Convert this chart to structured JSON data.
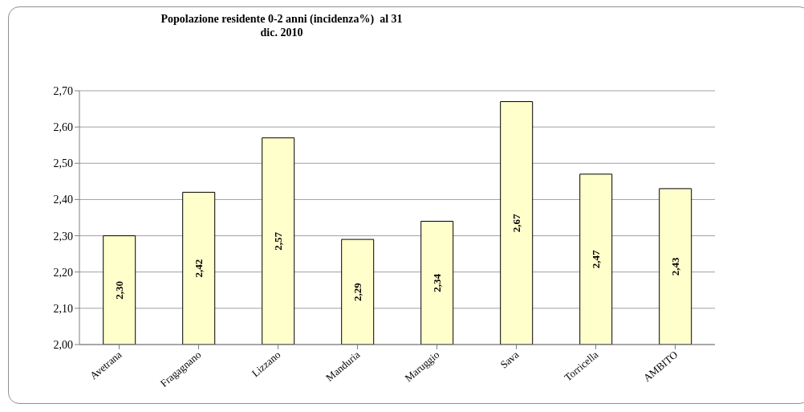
{
  "chart_data": {
    "type": "bar",
    "title": "Popolazione residente 0-2 anni (incidenza%)  al 31\ndic. 2010",
    "categories": [
      "Avetrana",
      "Fragagnano",
      "Lizzano",
      "Manduria",
      "Maruggio",
      "Sava",
      "Torricella",
      "AMBITO"
    ],
    "values": [
      2.3,
      2.42,
      2.57,
      2.29,
      2.34,
      2.67,
      2.47,
      2.43
    ],
    "value_labels": [
      "2,30",
      "2,42",
      "2,57",
      "2,29",
      "2,34",
      "2,67",
      "2,47",
      "2,43"
    ],
    "color": "#ffffcc",
    "ylim": [
      2.0,
      2.7
    ],
    "yticks": [
      {
        "value": 2.0,
        "label": "2,00"
      },
      {
        "value": 2.1,
        "label": "2,10"
      },
      {
        "value": 2.2,
        "label": "2,20"
      },
      {
        "value": 2.3,
        "label": "2,30"
      },
      {
        "value": 2.4,
        "label": "2,40"
      },
      {
        "value": 2.5,
        "label": "2,50"
      },
      {
        "value": 2.6,
        "label": "2,60"
      },
      {
        "value": 2.7,
        "label": "2,70"
      }
    ],
    "grid": "y",
    "legend": false
  }
}
